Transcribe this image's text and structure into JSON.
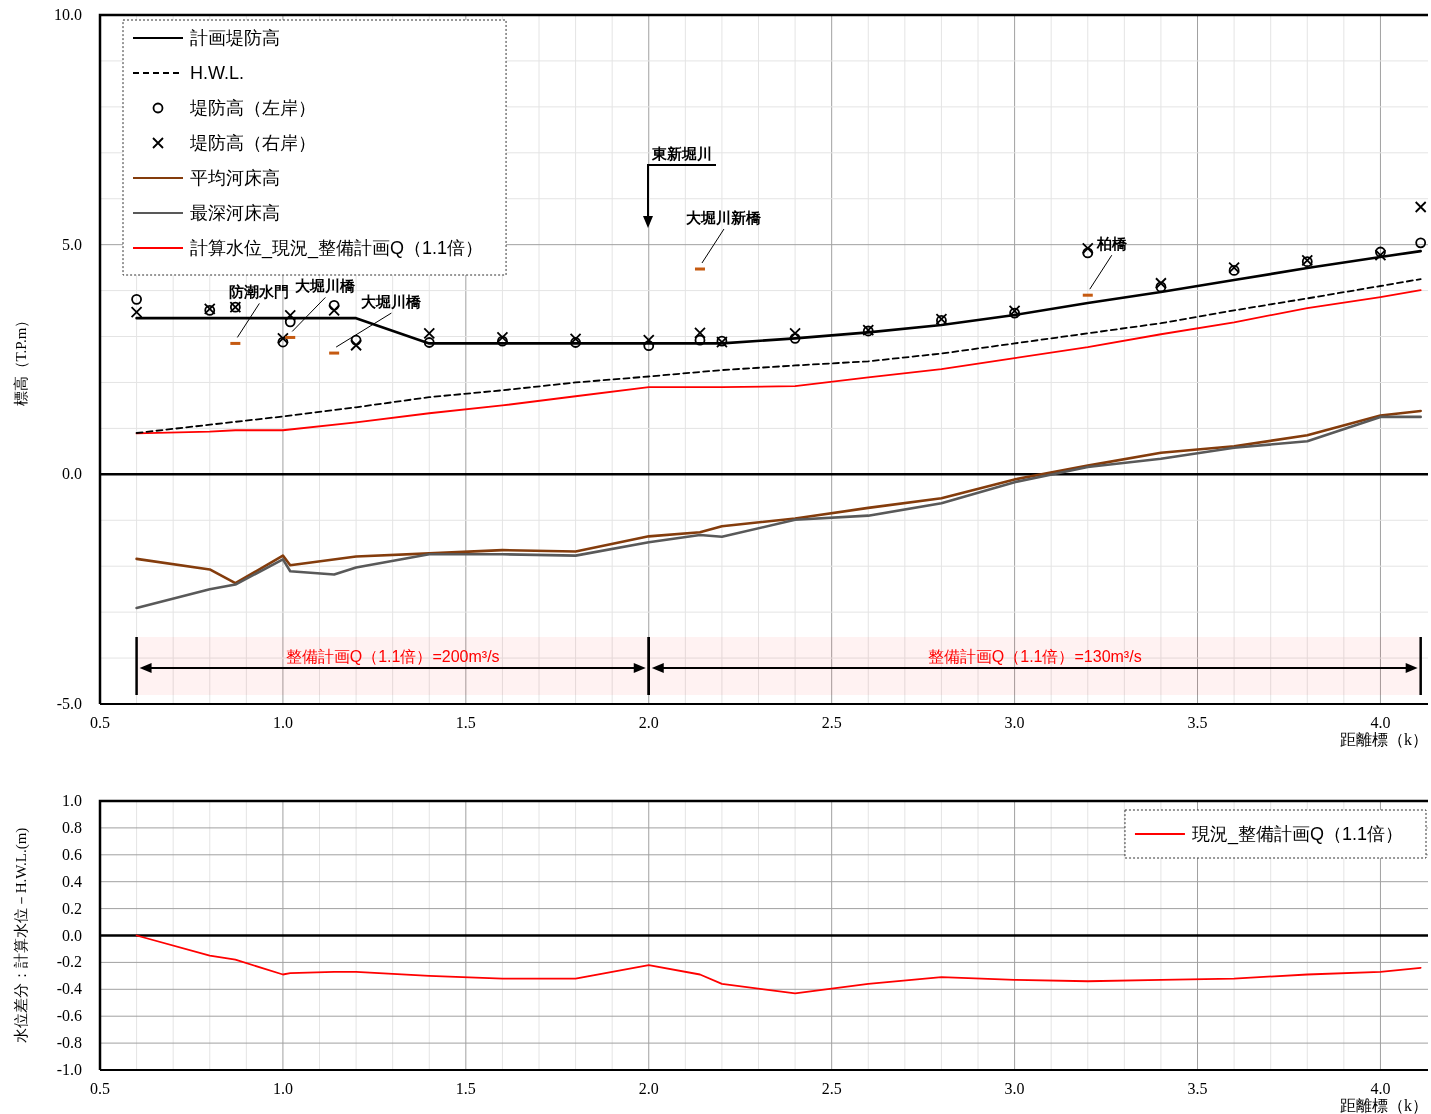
{
  "chart_data": [
    {
      "type": "line",
      "ylabel": "標高（T.P.m）",
      "xlabel": "距離標（k）",
      "xlim": [
        0.5,
        4.13
      ],
      "ylim": [
        -5,
        10
      ],
      "xticks": [
        {
          "value": 0.5,
          "label": "0.5"
        },
        {
          "value": 1,
          "label": "1.0"
        },
        {
          "value": 1.5,
          "label": "1.5"
        },
        {
          "value": 2,
          "label": "2.0"
        },
        {
          "value": 2.5,
          "label": "2.5"
        },
        {
          "value": 3,
          "label": "3.0"
        },
        {
          "value": 3.5,
          "label": "3.5"
        },
        {
          "value": 4,
          "label": "4.0"
        }
      ],
      "yticks": [
        {
          "value": -5,
          "label": "-5.0"
        },
        {
          "value": 0,
          "label": "0.0"
        },
        {
          "value": 5,
          "label": "5.0"
        },
        {
          "value": 10,
          "label": "10.0"
        }
      ],
      "grid": true,
      "legend": "top left",
      "series": [
        {
          "name": "計画堤防高",
          "color": "#000000",
          "line_style": "solid",
          "marker": "none",
          "x": [
            0.6,
            1.2,
            1.4,
            2.2,
            2.4,
            2.6,
            2.8,
            3.0,
            3.2,
            3.4,
            3.6,
            3.8,
            4.0,
            4.11
          ],
          "values": [
            3.4,
            3.4,
            2.85,
            2.85,
            2.96,
            3.09,
            3.25,
            3.47,
            3.73,
            3.97,
            4.23,
            4.49,
            4.73,
            4.86
          ]
        },
        {
          "name": "H.W.L.",
          "color": "#000000",
          "line_style": "dashed",
          "marker": "none",
          "x": [
            0.6,
            1.0,
            1.2,
            1.4,
            1.6,
            1.8,
            2.0,
            2.2,
            2.4,
            2.6,
            2.8,
            3.0,
            3.2,
            3.4,
            3.6,
            3.8,
            4.0,
            4.11
          ],
          "values": [
            0.9,
            1.26,
            1.46,
            1.68,
            1.83,
            2.0,
            2.13,
            2.27,
            2.37,
            2.46,
            2.63,
            2.85,
            3.07,
            3.29,
            3.57,
            3.83,
            4.1,
            4.25
          ]
        },
        {
          "name": "堤防高（左岸）",
          "type": "scatter",
          "color": "#000000",
          "marker": "circle",
          "x": [
            0.6,
            0.8,
            0.87,
            1.0,
            1.02,
            1.14,
            1.2,
            1.4,
            1.6,
            1.8,
            2.0,
            2.14,
            2.2,
            2.4,
            2.6,
            2.8,
            3.0,
            3.2,
            3.4,
            3.6,
            3.8,
            4.0,
            4.11
          ],
          "values": [
            3.81,
            3.57,
            3.64,
            2.88,
            3.32,
            3.68,
            2.92,
            2.87,
            2.9,
            2.87,
            2.8,
            2.92,
            2.9,
            2.96,
            3.12,
            3.35,
            3.51,
            4.82,
            4.08,
            4.44,
            4.63,
            4.84,
            5.04
          ]
        },
        {
          "name": "堤防高（右岸）",
          "type": "scatter",
          "color": "#000000",
          "marker": "cross",
          "x": [
            0.6,
            0.8,
            0.87,
            1.0,
            1.02,
            1.14,
            1.2,
            1.4,
            1.6,
            1.8,
            2.0,
            2.14,
            2.2,
            2.4,
            2.6,
            2.8,
            3.0,
            3.2,
            3.4,
            3.6,
            3.8,
            4.0,
            4.11
          ],
          "values": [
            3.53,
            3.6,
            3.64,
            2.96,
            3.46,
            3.57,
            2.81,
            3.07,
            2.98,
            2.95,
            2.92,
            3.08,
            2.88,
            3.07,
            3.14,
            3.38,
            3.56,
            4.92,
            4.16,
            4.5,
            4.66,
            4.77,
            5.82
          ]
        },
        {
          "name": "平均河床高",
          "color": "#843c0c",
          "line_style": "solid",
          "marker": "none",
          "x": [
            0.6,
            0.8,
            0.87,
            1.0,
            1.02,
            1.2,
            1.4,
            1.6,
            1.8,
            2.0,
            2.14,
            2.2,
            2.4,
            2.6,
            2.8,
            3.0,
            3.2,
            3.4,
            3.6,
            3.8,
            4.0,
            4.11
          ],
          "values": [
            -1.84,
            -2.07,
            -2.37,
            -1.77,
            -1.98,
            -1.79,
            -1.72,
            -1.65,
            -1.68,
            -1.35,
            -1.26,
            -1.13,
            -0.96,
            -0.73,
            -0.52,
            -0.11,
            0.19,
            0.47,
            0.61,
            0.85,
            1.28,
            1.38
          ]
        },
        {
          "name": "最深河床高",
          "color": "#595959",
          "line_style": "solid",
          "marker": "none",
          "x": [
            0.6,
            0.8,
            0.87,
            1.0,
            1.02,
            1.14,
            1.2,
            1.4,
            1.6,
            1.8,
            2.0,
            2.14,
            2.2,
            2.4,
            2.6,
            2.8,
            3.0,
            3.2,
            3.4,
            3.6,
            3.8,
            4.0,
            4.11
          ],
          "values": [
            -2.91,
            -2.5,
            -2.4,
            -1.85,
            -2.11,
            -2.18,
            -2.03,
            -1.74,
            -1.74,
            -1.77,
            -1.48,
            -1.32,
            -1.36,
            -0.99,
            -0.9,
            -0.63,
            -0.17,
            0.16,
            0.34,
            0.58,
            0.72,
            1.25,
            1.25
          ]
        },
        {
          "name": "計算水位_現況_整備計画Q（1.1倍）",
          "color": "#ff0000",
          "line_style": "solid",
          "marker": "none",
          "x": [
            0.6,
            0.8,
            0.87,
            1.0,
            1.2,
            1.4,
            1.6,
            1.8,
            2.0,
            2.2,
            2.4,
            2.6,
            2.8,
            3.0,
            3.2,
            3.4,
            3.6,
            3.8,
            4.0,
            4.11
          ],
          "values": [
            0.89,
            0.93,
            0.96,
            0.96,
            1.13,
            1.33,
            1.5,
            1.7,
            1.9,
            1.9,
            1.92,
            2.11,
            2.29,
            2.53,
            2.77,
            3.05,
            3.31,
            3.62,
            3.86,
            4.01
          ]
        },
        {
          "type": "scatter",
          "color": "#c55a11",
          "x": [
            0.87,
            1.02,
            1.14,
            2.14,
            3.2
          ],
          "values": [
            2.85,
            2.98,
            2.64,
            4.47,
            3.9
          ]
        }
      ],
      "ref_lines": [
        {
          "axis": "y",
          "value": 0,
          "color": "#000000"
        }
      ],
      "bands": [
        {
          "axis": "x",
          "from": 0.6,
          "to": 2.0,
          "label": "整備計画Q（1.1倍）=200m³/s",
          "color": "#ff0000"
        },
        {
          "axis": "x",
          "from": 2.0,
          "to": 4.11,
          "label": "整備計画Q（1.1倍）=130m³/s",
          "color": "#ff0000"
        }
      ],
      "annotations": [
        {
          "text": "防潮水門",
          "x": 0.87,
          "y": 2.85
        },
        {
          "text": "大堀川橋",
          "x": 1.02,
          "y": 2.98
        },
        {
          "text": "大堀川橋",
          "x": 1.14,
          "y": 2.64
        },
        "東新堀川",
        {
          "text": "大堀川新橋",
          "x": 2.14,
          "y": 4.47
        },
        {
          "text": "柏橋",
          "x": 3.2,
          "y": 3.9
        }
      ]
    },
    {
      "type": "line",
      "ylabel": "水位差分：計算水位－H.W.L.(m)",
      "xlabel": "距離標（k）",
      "xlim": [
        0.5,
        4.13
      ],
      "ylim": [
        -1,
        1
      ],
      "xticks": [
        {
          "value": 0.5,
          "label": "0.5"
        },
        {
          "value": 1,
          "label": "1.0"
        },
        {
          "value": 1.5,
          "label": "1.5"
        },
        {
          "value": 2,
          "label": "2.0"
        },
        {
          "value": 2.5,
          "label": "2.5"
        },
        {
          "value": 3,
          "label": "3.0"
        },
        {
          "value": 3.5,
          "label": "3.5"
        },
        {
          "value": 4,
          "label": "4.0"
        }
      ],
      "yticks": [
        {
          "value": -1,
          "label": "-1.0"
        },
        {
          "value": -0.8,
          "label": "-0.8"
        },
        {
          "value": -0.6,
          "label": "-0.6"
        },
        {
          "value": -0.4,
          "label": "-0.4"
        },
        {
          "value": -0.2,
          "label": "-0.2"
        },
        {
          "value": 0,
          "label": "0.0"
        },
        {
          "value": 0.2,
          "label": "0.2"
        },
        {
          "value": 0.4,
          "label": "0.4"
        },
        {
          "value": 0.6,
          "label": "0.6"
        },
        {
          "value": 0.8,
          "label": "0.8"
        },
        {
          "value": 1,
          "label": "1.0"
        }
      ],
      "grid": true,
      "legend": "top right",
      "series": [
        {
          "name": "現況_整備計画Q（1.1倍）",
          "color": "#ff0000",
          "line_style": "solid",
          "marker": "none",
          "x": [
            0.6,
            0.8,
            0.87,
            1.0,
            1.02,
            1.14,
            1.2,
            1.4,
            1.6,
            1.8,
            2.0,
            2.14,
            2.2,
            2.4,
            2.6,
            2.8,
            3.0,
            3.2,
            3.4,
            3.6,
            3.8,
            4.0,
            4.11
          ],
          "values": [
            0,
            -0.15,
            -0.18,
            -0.29,
            -0.28,
            -0.27,
            -0.27,
            -0.3,
            -0.32,
            -0.32,
            -0.22,
            -0.29,
            -0.36,
            -0.43,
            -0.36,
            -0.31,
            -0.33,
            -0.34,
            -0.33,
            -0.32,
            -0.29,
            -0.27,
            -0.24
          ]
        }
      ],
      "ref_lines": [
        {
          "axis": "y",
          "value": 0,
          "color": "#000000"
        }
      ]
    }
  ]
}
